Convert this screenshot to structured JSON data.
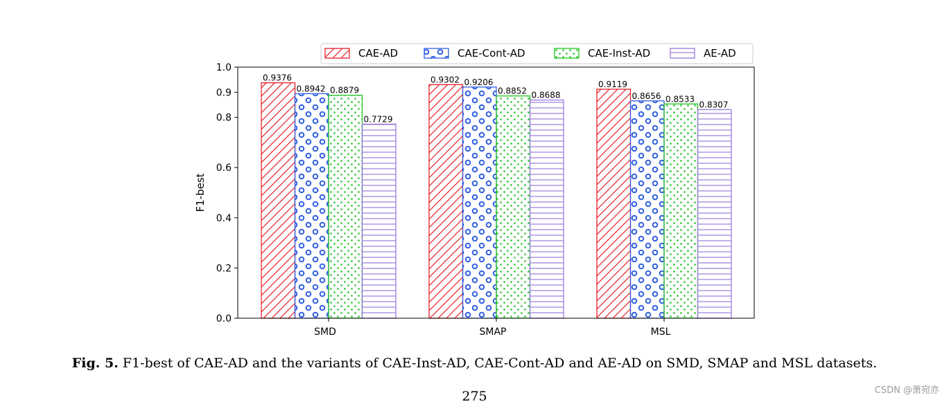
{
  "chart_data": {
    "type": "bar",
    "categories": [
      "SMD",
      "SMAP",
      "MSL"
    ],
    "series": [
      {
        "name": "CAE-AD",
        "values": [
          0.9376,
          0.9302,
          0.9119
        ],
        "color": "#e8212a",
        "pattern": "diagonal"
      },
      {
        "name": "CAE-Cont-AD",
        "values": [
          0.8942,
          0.9206,
          0.8656
        ],
        "color": "#2f5fe0",
        "pattern": "circles"
      },
      {
        "name": "CAE-Inst-AD",
        "values": [
          0.8879,
          0.8852,
          0.8533
        ],
        "color": "#1fc21f",
        "pattern": "dots"
      },
      {
        "name": "AE-AD",
        "values": [
          0.7729,
          0.8688,
          0.8307
        ],
        "color": "#9a7ae0",
        "pattern": "horizontal"
      }
    ],
    "value_labels": [
      [
        "0.9376",
        "0.8942",
        "0.8879",
        "0.7729"
      ],
      [
        "0.9302",
        "0.9206",
        "0.8852",
        "0.8688"
      ],
      [
        "0.9119",
        "0.8656",
        "0.8533",
        "0.8307"
      ]
    ],
    "ylim": [
      0.0,
      1.0
    ],
    "yticks": [
      {
        "value": 0.0,
        "label": "0.0"
      },
      {
        "value": 0.2,
        "label": "0.2"
      },
      {
        "value": 0.4,
        "label": "0.4"
      },
      {
        "value": 0.6,
        "label": "0.6"
      },
      {
        "value": 0.8,
        "label": "0.8"
      },
      {
        "value": 0.9,
        "label": "0.9"
      },
      {
        "value": 1.0,
        "label": "1.0"
      }
    ],
    "ylabel": "F1-best",
    "xlabel": "",
    "title": "",
    "legend_position": "top-right",
    "grid": false
  },
  "caption": {
    "label": "Fig. 5.",
    "text": "F1-best of CAE-AD and the variants of CAE-Inst-AD, CAE-Cont-AD and AE-AD on SMD, SMAP and MSL datasets."
  },
  "page_number": "275",
  "watermark": "CSDN @萧宛亦"
}
